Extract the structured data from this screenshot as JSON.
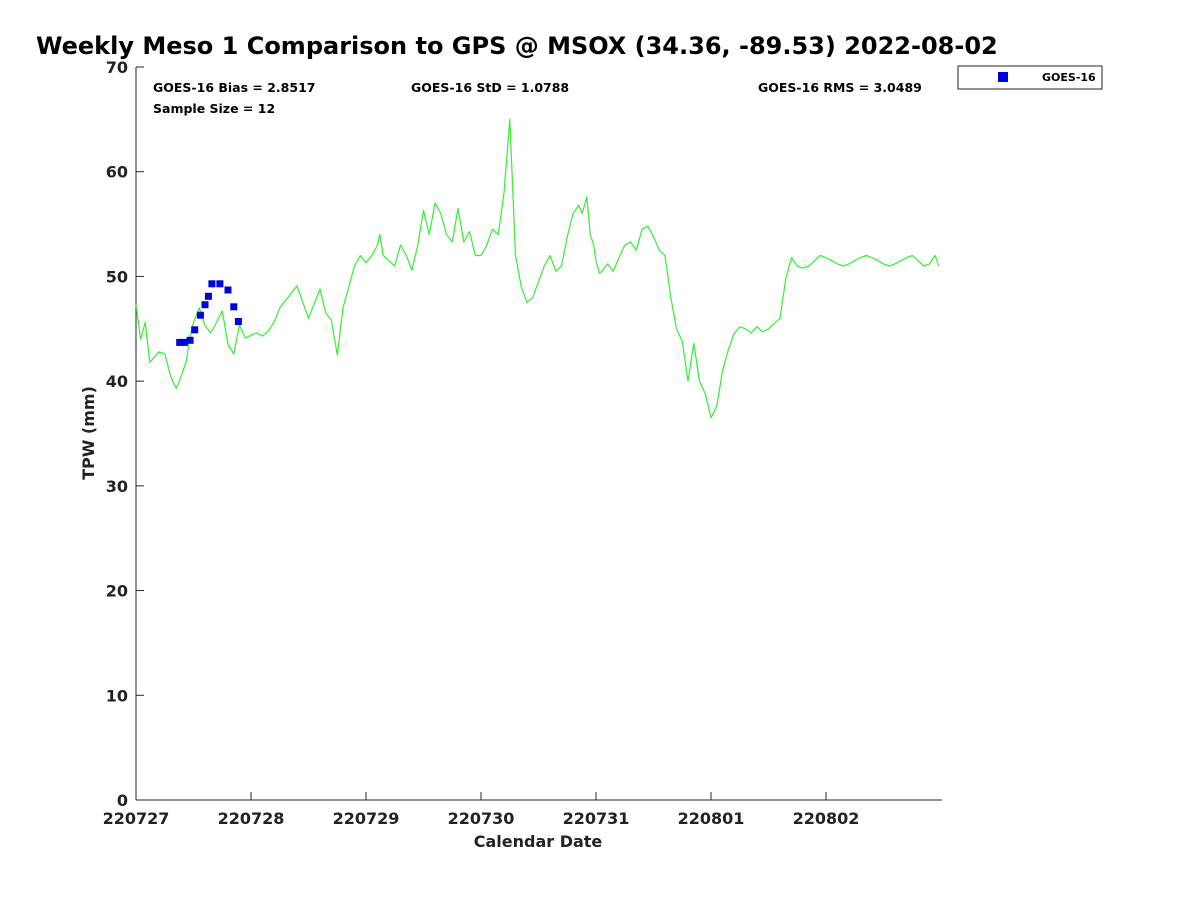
{
  "chart_data": {
    "type": "scatter",
    "title": "Weekly Meso 1 Comparison to GPS @ MSOX (34.36, -89.53) 2022-08-02",
    "xlabel": "Calendar Date",
    "ylabel": "TPW (mm)",
    "xlim": [
      0,
      7
    ],
    "ylim": [
      0,
      70
    ],
    "x_tick_labels": [
      "220727",
      "220728",
      "220729",
      "220730",
      "220731",
      "220801",
      "220802"
    ],
    "y_ticks": [
      0,
      10,
      20,
      30,
      40,
      50,
      60,
      70
    ],
    "legend": {
      "position": "top-right",
      "entries": [
        "GOES-16"
      ]
    },
    "stats": {
      "bias": "GOES-16 Bias = 2.8517",
      "std": "GOES-16 StD = 1.0788",
      "rms": "GOES-16 RMS = 3.0489",
      "sample": "Sample Size = 12"
    },
    "series": [
      {
        "name": "GOES-16",
        "marker": "square",
        "color": "#0000dd",
        "x": [
          0.38,
          0.42,
          0.47,
          0.51,
          0.56,
          0.6,
          0.63,
          0.66,
          0.73,
          0.8,
          0.85,
          0.89
        ],
        "y": [
          43.7,
          43.7,
          43.9,
          44.9,
          46.3,
          47.3,
          48.1,
          49.3,
          49.3,
          48.7,
          47.1,
          45.7
        ]
      },
      {
        "color": "#33ee33",
        "x": [
          0.0,
          0.04,
          0.08,
          0.12,
          0.16,
          0.2,
          0.25,
          0.3,
          0.35,
          0.4,
          0.44,
          0.46,
          0.5,
          0.55,
          0.6,
          0.65,
          0.7,
          0.75,
          0.8,
          0.85,
          0.9,
          0.95,
          1.0,
          1.05,
          1.1,
          1.15,
          1.2,
          1.25,
          1.3,
          1.4,
          1.5,
          1.6,
          1.65,
          1.7,
          1.75,
          1.8,
          1.85,
          1.9,
          1.95,
          2.0,
          2.05,
          2.1,
          2.12,
          2.15,
          2.2,
          2.25,
          2.3,
          2.35,
          2.4,
          2.45,
          2.5,
          2.55,
          2.6,
          2.65,
          2.7,
          2.75,
          2.8,
          2.85,
          2.9,
          2.95,
          3.0,
          3.05,
          3.1,
          3.15,
          3.2,
          3.25,
          3.3,
          3.35,
          3.4,
          3.45,
          3.5,
          3.55,
          3.6,
          3.65,
          3.7,
          3.75,
          3.8,
          3.85,
          3.88,
          3.92,
          3.95,
          3.98,
          4.0,
          4.03,
          4.05,
          4.1,
          4.15,
          4.2,
          4.25,
          4.3,
          4.35,
          4.4,
          4.45,
          4.5,
          4.55,
          4.6,
          4.65,
          4.7,
          4.75,
          4.8,
          4.85,
          4.9,
          4.95,
          5.0,
          5.05,
          5.1,
          5.15,
          5.2,
          5.25,
          5.3,
          5.35,
          5.4,
          5.45,
          5.5,
          5.55,
          5.6,
          5.65,
          5.7,
          5.75,
          5.8,
          5.85,
          5.9,
          5.95,
          6.0,
          6.05,
          6.1,
          6.15,
          6.2,
          6.25,
          6.3,
          6.35,
          6.4,
          6.45,
          6.5,
          6.55,
          6.6,
          6.65,
          6.7,
          6.75,
          6.8,
          6.85,
          6.9,
          6.95,
          6.98
        ],
        "y": [
          47.3,
          44.0,
          45.6,
          41.8,
          42.3,
          42.8,
          42.6,
          40.5,
          39.3,
          40.7,
          42.0,
          43.8,
          45.6,
          47.0,
          45.3,
          44.6,
          45.6,
          46.7,
          43.5,
          42.6,
          45.4,
          44.1,
          44.4,
          44.6,
          44.3,
          44.8,
          45.6,
          47.0,
          47.7,
          49.1,
          46.0,
          48.8,
          46.5,
          45.8,
          42.5,
          47.0,
          49.0,
          51.0,
          52.0,
          51.3,
          52.0,
          53.0,
          54.0,
          52.0,
          51.5,
          51.0,
          53.0,
          52.0,
          50.6,
          53.0,
          56.3,
          54.0,
          57.0,
          56.0,
          54.0,
          53.3,
          56.5,
          53.3,
          54.3,
          52.0,
          52.0,
          53.0,
          54.5,
          54.0,
          58.0,
          65.0,
          52.0,
          49.0,
          47.5,
          48.0,
          49.5,
          51.0,
          52.0,
          50.5,
          51.0,
          53.8,
          56.0,
          56.8,
          56.0,
          57.6,
          54.0,
          53.0,
          51.5,
          50.3,
          50.5,
          51.2,
          50.5,
          51.8,
          53.0,
          53.3,
          52.5,
          54.5,
          54.8,
          53.8,
          52.5,
          52.0,
          48.0,
          45.0,
          43.8,
          40.0,
          43.6,
          40.0,
          38.8,
          36.5,
          37.6,
          41.0,
          43.0,
          44.5,
          45.2,
          45.0,
          44.6,
          45.2,
          44.7,
          45.0,
          45.5,
          46.0,
          49.8,
          51.8,
          51.0,
          50.8,
          51.0,
          51.5,
          52.0,
          51.8,
          51.5,
          51.2,
          51.0,
          51.2,
          51.5,
          51.8,
          52.0,
          51.8,
          51.5,
          51.2,
          51.0,
          51.2,
          51.5,
          51.8,
          52.0,
          51.5,
          51.0,
          51.2,
          52.0,
          51.0
        ]
      }
    ]
  }
}
